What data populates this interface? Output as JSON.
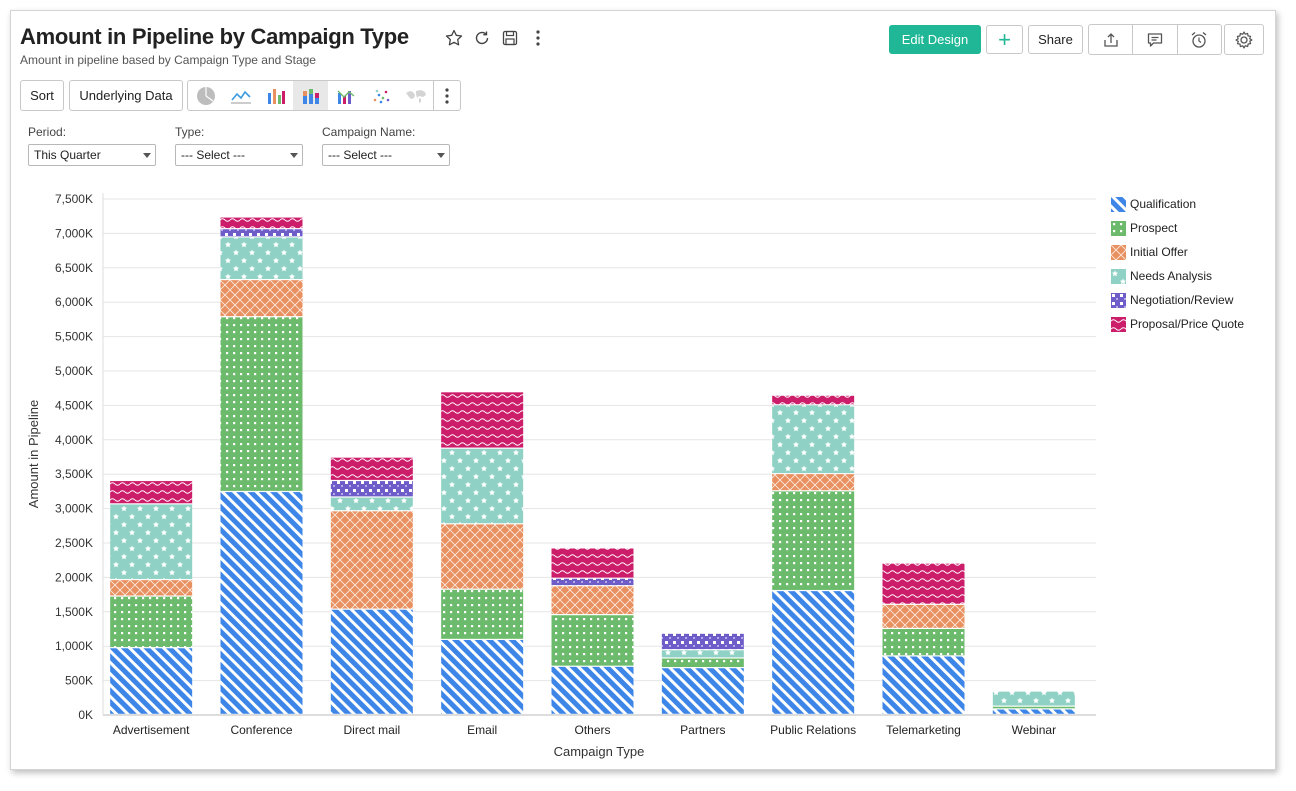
{
  "header": {
    "title": "Amount in Pipeline by Campaign Type",
    "subtitle": "Amount in pipeline based by Campaign Type and Stage",
    "edit_design_label": "Edit Design",
    "add_label": "+",
    "share_label": "Share"
  },
  "toolbar": {
    "sort_label": "Sort",
    "underlying_data_label": "Underlying Data"
  },
  "filters": [
    {
      "label": "Period:",
      "value": "This Quarter"
    },
    {
      "label": "Type:",
      "value": "--- Select ---"
    },
    {
      "label": "Campaign Name:",
      "value": "--- Select ---"
    }
  ],
  "colors": {
    "Qualification": "#3d86e8",
    "Prospect": "#6cbb6c",
    "Initial Offer": "#e8905f",
    "Needs Analysis": "#8fd1c4",
    "Negotiation/Review": "#6e5cc9",
    "Proposal/Price Quote": "#cc1d6a"
  },
  "chart_data": {
    "type": "bar",
    "stacked": true,
    "xlabel": "Campaign Type",
    "ylabel": "Amount in Pipeline",
    "ylim": [
      0,
      7500
    ],
    "yticks": [
      "0K",
      "500K",
      "1,000K",
      "1,500K",
      "2,000K",
      "2,500K",
      "3,000K",
      "3,500K",
      "4,000K",
      "4,500K",
      "5,000K",
      "5,500K",
      "6,000K",
      "6,500K",
      "7,000K",
      "7,500K"
    ],
    "grid": true,
    "legend_position": "right",
    "categories": [
      "Advertisement",
      "Conference",
      "Direct mail",
      "Email",
      "Others",
      "Partners",
      "Public Relations",
      "Telemarketing",
      "Webinar"
    ],
    "series": [
      {
        "name": "Qualification",
        "values": [
          970,
          3240,
          1530,
          1090,
          700,
          680,
          1800,
          850,
          80
        ]
      },
      {
        "name": "Prospect",
        "values": [
          750,
          2540,
          0,
          730,
          750,
          140,
          1450,
          400,
          40
        ]
      },
      {
        "name": "Initial Offer",
        "values": [
          240,
          540,
          1430,
          950,
          420,
          0,
          250,
          350,
          0
        ]
      },
      {
        "name": "Needs Analysis",
        "values": [
          1100,
          620,
          200,
          1100,
          0,
          120,
          1000,
          0,
          220
        ]
      },
      {
        "name": "Negotiation/Review",
        "values": [
          0,
          120,
          240,
          0,
          110,
          240,
          0,
          0,
          0
        ]
      },
      {
        "name": "Proposal/Price Quote",
        "values": [
          340,
          170,
          340,
          820,
          440,
          0,
          140,
          600,
          0
        ]
      }
    ]
  }
}
